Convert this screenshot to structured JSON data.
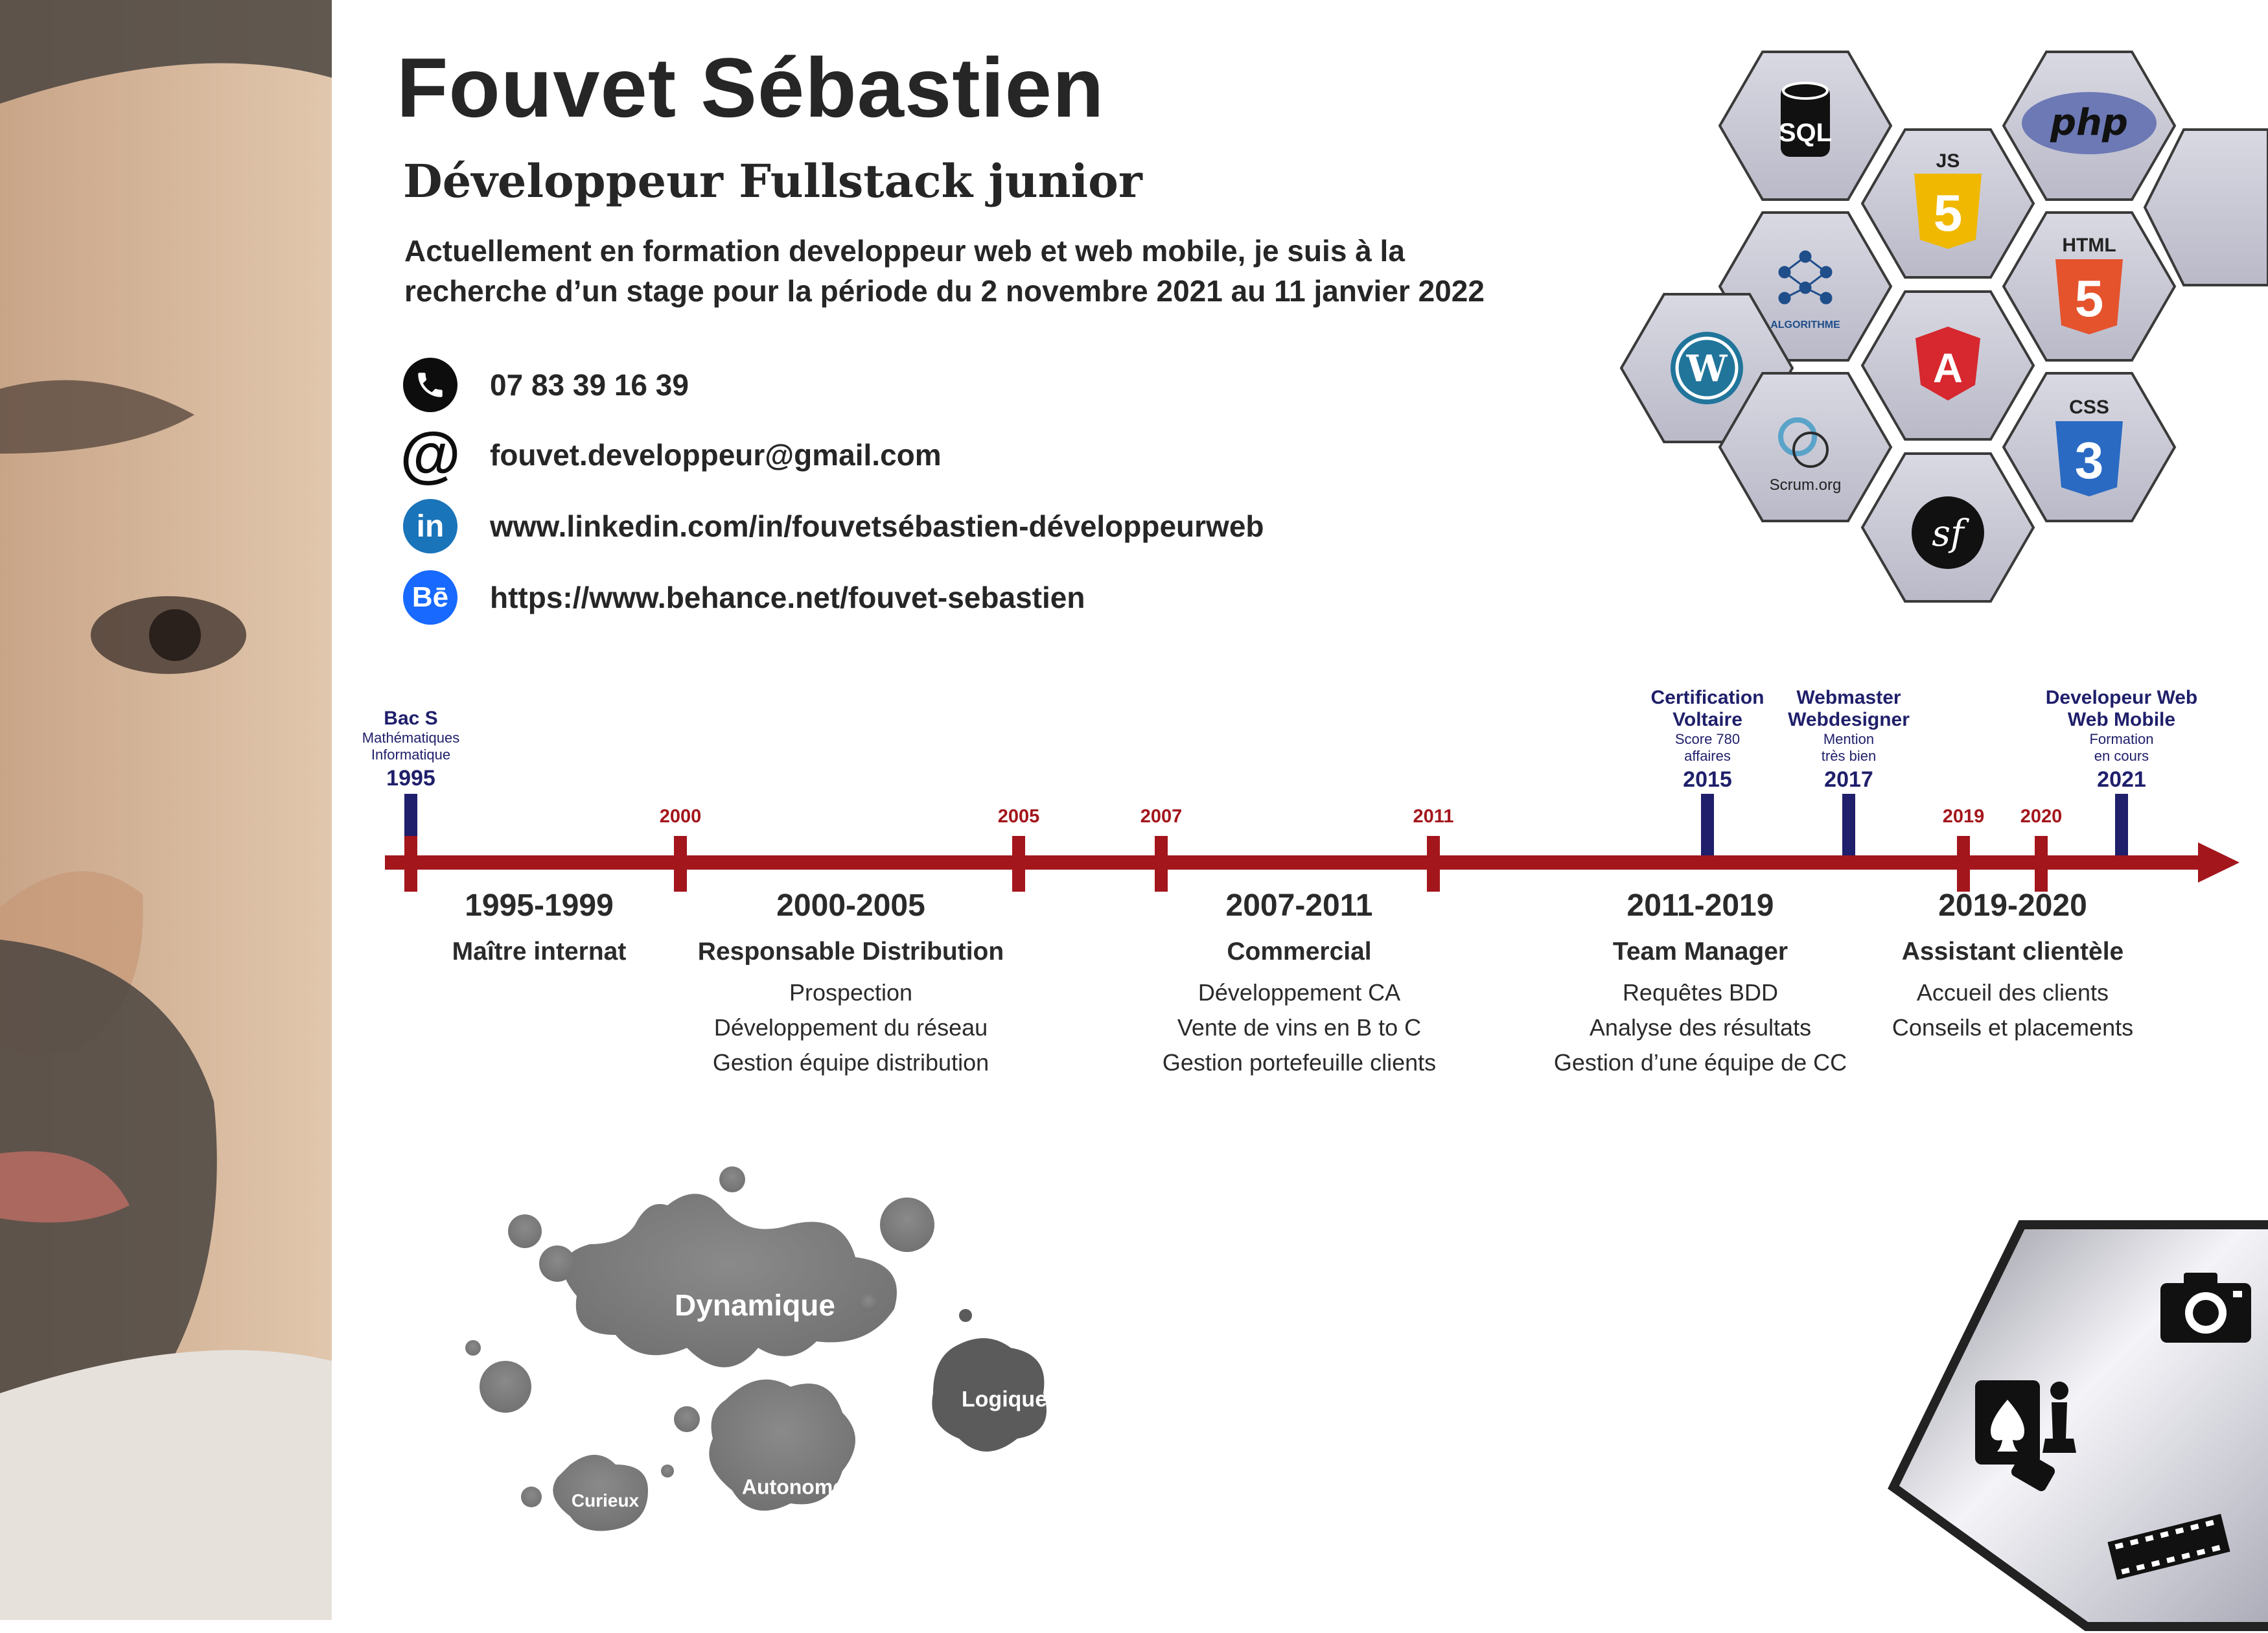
{
  "header": {
    "name": "Fouvet Sébastien",
    "job_title": "Développeur Fullstack junior",
    "summary": "Actuellement en formation developpeur web et web mobile, je suis à la recherche d’un stage pour la période du 2 novembre 2021 au 11 janvier 2022"
  },
  "contacts": [
    {
      "icon": "phone-icon",
      "text": "07 83 39 16 39"
    },
    {
      "icon": "at-sign-icon",
      "text": "fouvet.developpeur@gmail.com"
    },
    {
      "icon": "linkedin-icon",
      "glyph": "in",
      "text": "www.linkedin.com/in/fouvetsébastien-développeurweb"
    },
    {
      "icon": "behance-icon",
      "glyph": "Bē",
      "text": "https://www.behance.net/fouvet-sebastien"
    }
  ],
  "skills": {
    "sql": "SQL",
    "js_badge": "JS",
    "html_badge": "HTML",
    "css_badge": "CSS",
    "php": "php",
    "algorithme": "ALGORITHME",
    "scrum": "Scrum.org",
    "angular": "A",
    "html_num": "5",
    "js_num": "5",
    "css_num": "3",
    "wordpress": "W",
    "symfony": "sf"
  },
  "timeline": {
    "milestones": [
      {
        "title": "Bac S",
        "sub": [
          "Mathématiques",
          "Informatique"
        ],
        "year": "1995"
      },
      {
        "title": "Certification Voltaire",
        "title_lines": [
          "Certification",
          "Voltaire"
        ],
        "sub": [
          "Score 780",
          "affaires"
        ],
        "year": "2015"
      },
      {
        "title": "Webmaster Webdesigner",
        "title_lines": [
          "Webmaster",
          "Webdesigner"
        ],
        "sub": [
          "Mention",
          "très bien"
        ],
        "year": "2017"
      },
      {
        "title": "Developeur Web Web Mobile",
        "title_lines": [
          "Developeur Web",
          "Web Mobile"
        ],
        "sub": [
          "Formation",
          "en cours"
        ],
        "year": "2021"
      }
    ],
    "red_years": [
      "2000",
      "2005",
      "2007",
      "2011",
      "2019",
      "2020"
    ],
    "periods": [
      {
        "years": "1995-1999",
        "role": "Maître internat",
        "tasks": []
      },
      {
        "years": "2000-2005",
        "role": "Responsable Distribution",
        "tasks": [
          "Prospection",
          "Développement du réseau",
          "Gestion équipe distribution"
        ]
      },
      {
        "years": "2007-2011",
        "role": "Commercial",
        "tasks": [
          "Développement CA",
          "Vente de vins en B to C",
          "Gestion portefeuille clients"
        ]
      },
      {
        "years": "2011-2019",
        "role": "Team Manager",
        "tasks": [
          "Requêtes BDD",
          "Analyse des résultats",
          "Gestion d’une équipe de CC"
        ]
      },
      {
        "years": "2019-2020",
        "role": "Assistant clientèle",
        "tasks": [
          "Accueil des clients",
          "Conseils et placements"
        ]
      }
    ]
  },
  "qualities": [
    "Dynamique",
    "Logique",
    "Autonome",
    "Curieux"
  ],
  "hobbies": [
    "camera-icon",
    "cards-and-chess-icon",
    "film-strip-icon"
  ],
  "colors": {
    "timeline_red": "#a3161c",
    "milestone_blue": "#1f1f6b",
    "hex_fill": "#cfcfdb"
  }
}
